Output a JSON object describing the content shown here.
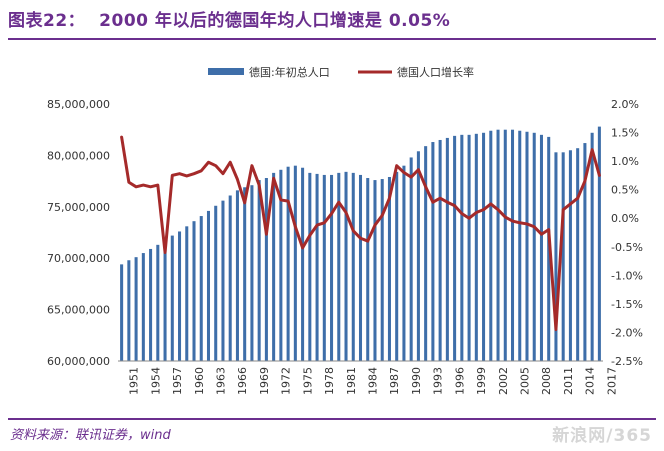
{
  "header": {
    "figure_label": "图表22：",
    "title": "2000 年以后的德国年均人口增速是 0.05%"
  },
  "footer": {
    "source": "资料来源：联讯证券，wind",
    "watermark": "新浪网/365"
  },
  "colors": {
    "accent": "#6b2f8e",
    "bar": "#3e6ea9",
    "line": "#a52a2a"
  },
  "chart_data": {
    "type": "bar",
    "title": "",
    "xlabel": "",
    "ylabel": "",
    "ylim": [
      60000000,
      85000000
    ],
    "y2lim": [
      -2.5,
      2.0
    ],
    "legend_position": "top-center",
    "yticks": [
      "85,000,000",
      "80,000,000",
      "75,000,000",
      "70,000,000",
      "65,000,000",
      "60,000,000"
    ],
    "y2ticks": [
      "2.0%",
      "1.5%",
      "1.0%",
      "0.5%",
      "0.0%",
      "-0.5%",
      "-1.0%",
      "-1.5%",
      "-2.0%",
      "-2.5%"
    ],
    "xtick_labels": [
      "1951",
      "1954",
      "1957",
      "1960",
      "1963",
      "1966",
      "1969",
      "1972",
      "1975",
      "1978",
      "1981",
      "1984",
      "1987",
      "1990",
      "1993",
      "1996",
      "1999",
      "2002",
      "2005",
      "2008",
      "2011",
      "2014",
      "2017"
    ],
    "x": [
      1951,
      1952,
      1953,
      1954,
      1955,
      1956,
      1957,
      1958,
      1959,
      1960,
      1961,
      1962,
      1963,
      1964,
      1965,
      1966,
      1967,
      1968,
      1969,
      1970,
      1971,
      1972,
      1973,
      1974,
      1975,
      1976,
      1977,
      1978,
      1979,
      1980,
      1981,
      1982,
      1983,
      1984,
      1985,
      1986,
      1987,
      1988,
      1989,
      1990,
      1991,
      1992,
      1993,
      1994,
      1995,
      1996,
      1997,
      1998,
      1999,
      2000,
      2001,
      2002,
      2003,
      2004,
      2005,
      2006,
      2007,
      2008,
      2009,
      2010,
      2011,
      2012,
      2013,
      2014,
      2015,
      2016,
      2017
    ],
    "series": [
      {
        "name": "德国:年初总人口",
        "axis": "left",
        "kind": "bar",
        "values": [
          69400000,
          69800000,
          70100000,
          70500000,
          70900000,
          71300000,
          71700000,
          72200000,
          72600000,
          73100000,
          73600000,
          74100000,
          74600000,
          75100000,
          75600000,
          76100000,
          76600000,
          76900000,
          77100000,
          77600000,
          77800000,
          78300000,
          78600000,
          78900000,
          79000000,
          78800000,
          78300000,
          78200000,
          78100000,
          78100000,
          78300000,
          78400000,
          78300000,
          78100000,
          77800000,
          77600000,
          77700000,
          77900000,
          78400000,
          79000000,
          79800000,
          80400000,
          80900000,
          81300000,
          81500000,
          81700000,
          81900000,
          82000000,
          82000000,
          82100000,
          82200000,
          82400000,
          82500000,
          82500000,
          82500000,
          82400000,
          82300000,
          82200000,
          82000000,
          81800000,
          80300000,
          80300000,
          80500000,
          80700000,
          81200000,
          82200000,
          82800000
        ]
      },
      {
        "name": "德国人口增长率",
        "axis": "right",
        "kind": "line",
        "values": [
          1.42,
          0.63,
          0.55,
          0.58,
          0.55,
          0.58,
          -0.6,
          0.75,
          0.78,
          0.74,
          0.78,
          0.83,
          0.98,
          0.92,
          0.78,
          0.98,
          0.68,
          0.27,
          0.92,
          0.58,
          -0.28,
          0.7,
          0.32,
          0.3,
          -0.15,
          -0.52,
          -0.3,
          -0.12,
          -0.08,
          0.08,
          0.28,
          0.1,
          -0.22,
          -0.35,
          -0.4,
          -0.12,
          0.05,
          0.35,
          0.92,
          0.8,
          0.72,
          0.85,
          0.55,
          0.28,
          0.35,
          0.28,
          0.22,
          0.08,
          0.0,
          0.1,
          0.15,
          0.25,
          0.15,
          0.02,
          -0.05,
          -0.08,
          -0.1,
          -0.15,
          -0.28,
          -0.2,
          -1.95,
          0.15,
          0.25,
          0.35,
          0.65,
          1.2,
          0.75
        ]
      }
    ]
  }
}
